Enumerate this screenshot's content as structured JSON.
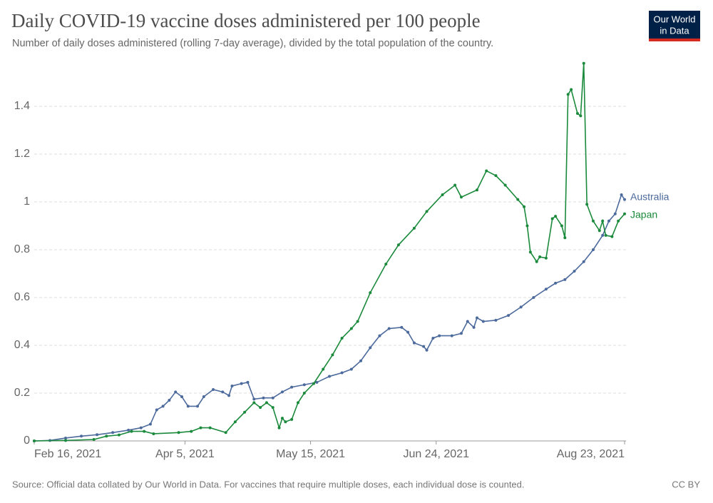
{
  "chart_data": {
    "type": "line",
    "title": "Daily COVID-19 vaccine doses administered per 100 people",
    "subtitle": "Number of daily doses administered (rolling 7-day average), divided by the total population of the country.",
    "source": "Source: Official data collated by Our World in Data. For vaccines that require multiple doses, each individual dose is counted.",
    "license": "CC BY",
    "logo": [
      "Our World",
      "in Data"
    ],
    "xlim": [
      "2021-02-16",
      "2021-08-23"
    ],
    "xticks": [
      {
        "value": "2021-02-16",
        "label": "Feb 16, 2021"
      },
      {
        "value": "2021-04-05",
        "label": "Apr 5, 2021"
      },
      {
        "value": "2021-05-15",
        "label": "May 15, 2021"
      },
      {
        "value": "2021-06-24",
        "label": "Jun 24, 2021"
      },
      {
        "value": "2021-08-23",
        "label": "Aug 23, 2021"
      }
    ],
    "ylim": [
      0,
      1.6
    ],
    "yticks": [
      0,
      0.2,
      0.4,
      0.6,
      0.8,
      1,
      1.2,
      1.4
    ],
    "grid": true,
    "series": [
      {
        "name": "Australia",
        "color": "#4c6a9c",
        "x": [
          "2021-02-16",
          "2021-02-21",
          "2021-02-26",
          "2021-03-03",
          "2021-03-08",
          "2021-03-13",
          "2021-03-18",
          "2021-03-22",
          "2021-03-25",
          "2021-03-27",
          "2021-03-29",
          "2021-03-31",
          "2021-04-02",
          "2021-04-04",
          "2021-04-06",
          "2021-04-09",
          "2021-04-11",
          "2021-04-14",
          "2021-04-17",
          "2021-04-19",
          "2021-04-20",
          "2021-04-23",
          "2021-04-25",
          "2021-04-27",
          "2021-04-30",
          "2021-05-03",
          "2021-05-06",
          "2021-05-09",
          "2021-05-13",
          "2021-05-17",
          "2021-05-21",
          "2021-05-25",
          "2021-05-28",
          "2021-05-31",
          "2021-06-03",
          "2021-06-06",
          "2021-06-09",
          "2021-06-13",
          "2021-06-15",
          "2021-06-17",
          "2021-06-20",
          "2021-06-21",
          "2021-06-23",
          "2021-06-25",
          "2021-06-29",
          "2021-07-02",
          "2021-07-04",
          "2021-07-06",
          "2021-07-07",
          "2021-07-09",
          "2021-07-13",
          "2021-07-17",
          "2021-07-21",
          "2021-07-25",
          "2021-07-29",
          "2021-08-01",
          "2021-08-04",
          "2021-08-07",
          "2021-08-10",
          "2021-08-13",
          "2021-08-16",
          "2021-08-18",
          "2021-08-20",
          "2021-08-22",
          "2021-08-23"
        ],
        "values": [
          0,
          0.002,
          0.012,
          0.02,
          0.026,
          0.035,
          0.045,
          0.055,
          0.07,
          0.13,
          0.145,
          0.17,
          0.205,
          0.185,
          0.145,
          0.145,
          0.185,
          0.215,
          0.205,
          0.19,
          0.23,
          0.24,
          0.245,
          0.175,
          0.18,
          0.18,
          0.205,
          0.225,
          0.235,
          0.245,
          0.27,
          0.285,
          0.3,
          0.335,
          0.39,
          0.44,
          0.47,
          0.475,
          0.455,
          0.41,
          0.395,
          0.38,
          0.43,
          0.44,
          0.44,
          0.45,
          0.5,
          0.475,
          0.515,
          0.5,
          0.505,
          0.525,
          0.56,
          0.6,
          0.635,
          0.66,
          0.675,
          0.71,
          0.75,
          0.8,
          0.86,
          0.92,
          0.95,
          1.03,
          1.01
        ]
      },
      {
        "name": "Japan",
        "color": "#1b8a3c",
        "x": [
          "2021-02-16",
          "2021-02-26",
          "2021-03-07",
          "2021-03-11",
          "2021-03-15",
          "2021-03-19",
          "2021-03-23",
          "2021-03-26",
          "2021-04-03",
          "2021-04-07",
          "2021-04-10",
          "2021-04-13",
          "2021-04-18",
          "2021-04-21",
          "2021-04-24",
          "2021-04-27",
          "2021-04-29",
          "2021-05-01",
          "2021-05-03",
          "2021-05-05",
          "2021-05-06",
          "2021-05-07",
          "2021-05-09",
          "2021-05-11",
          "2021-05-13",
          "2021-05-16",
          "2021-05-19",
          "2021-05-22",
          "2021-05-25",
          "2021-05-28",
          "2021-05-30",
          "2021-06-03",
          "2021-06-08",
          "2021-06-12",
          "2021-06-17",
          "2021-06-21",
          "2021-06-26",
          "2021-06-30",
          "2021-07-02",
          "2021-07-07",
          "2021-07-10",
          "2021-07-13",
          "2021-07-16",
          "2021-07-20",
          "2021-07-22",
          "2021-07-23",
          "2021-07-24",
          "2021-07-26",
          "2021-07-27",
          "2021-07-29",
          "2021-07-31",
          "2021-08-01",
          "2021-08-03",
          "2021-08-04",
          "2021-08-05",
          "2021-08-06",
          "2021-08-08",
          "2021-08-09",
          "2021-08-10",
          "2021-08-11",
          "2021-08-13",
          "2021-08-15",
          "2021-08-16",
          "2021-08-17",
          "2021-08-19",
          "2021-08-21",
          "2021-08-23"
        ],
        "values": [
          0,
          0.002,
          0.006,
          0.02,
          0.025,
          0.04,
          0.04,
          0.03,
          0.035,
          0.04,
          0.055,
          0.055,
          0.035,
          0.08,
          0.12,
          0.16,
          0.14,
          0.16,
          0.14,
          0.055,
          0.095,
          0.08,
          0.09,
          0.16,
          0.2,
          0.24,
          0.3,
          0.36,
          0.43,
          0.47,
          0.5,
          0.62,
          0.74,
          0.82,
          0.89,
          0.96,
          1.03,
          1.07,
          1.02,
          1.05,
          1.13,
          1.11,
          1.07,
          1.01,
          0.98,
          0.9,
          0.79,
          0.75,
          0.77,
          0.765,
          0.93,
          0.94,
          0.9,
          0.85,
          1.45,
          1.47,
          1.37,
          1.36,
          1.58,
          0.99,
          0.92,
          0.88,
          0.92,
          0.86,
          0.855,
          0.92,
          0.95
        ]
      }
    ]
  }
}
